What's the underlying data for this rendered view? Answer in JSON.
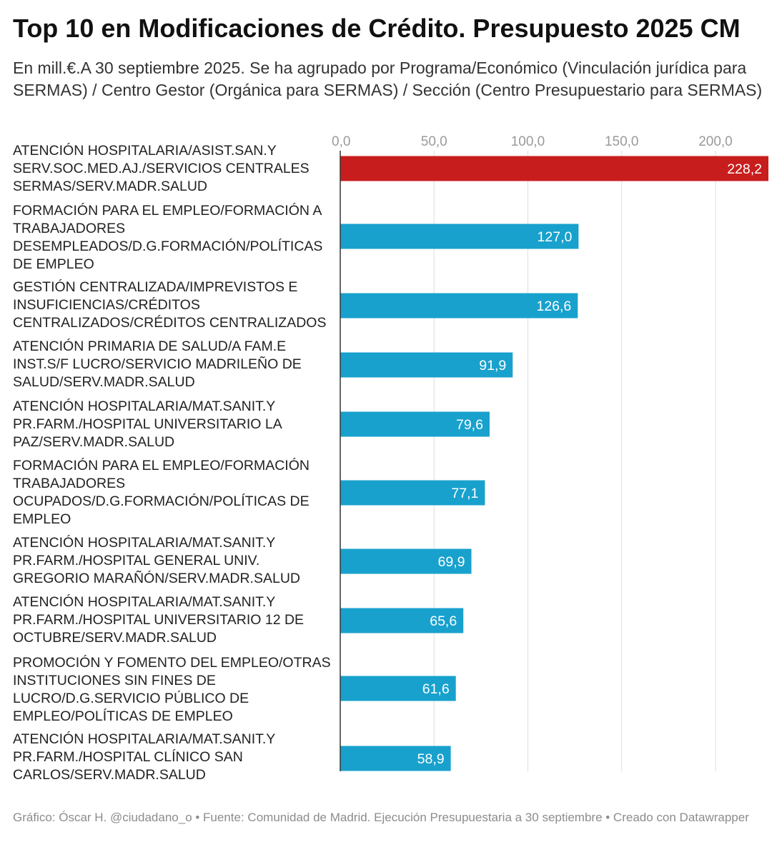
{
  "chart_data": {
    "type": "bar",
    "orientation": "horizontal",
    "title": "Top 10 en Modificaciones de Crédito. Presupuesto 2025 CM",
    "subtitle": "En mill.€.A 30 septiembre 2025. Se ha agrupado por Programa/Económico (Vinculación jurídica para SERMAS) / Centro Gestor (Orgánica para SERMAS) / Sección (Centro Presupuestario para SERMAS)",
    "xlabel": "",
    "ylabel": "",
    "xlim": [
      0,
      228.2
    ],
    "ticks": [
      0,
      50,
      100,
      150,
      200
    ],
    "tick_labels": [
      "0,0",
      "50,0",
      "100,0",
      "150,0",
      "200,0"
    ],
    "categories": [
      "ATENCIÓN HOSPITALARIA/ASIST.SAN.Y SERV.SOC.MED.AJ./SERVICIOS CENTRALES SERMAS/SERV.MADR.SALUD",
      "FORMACIÓN PARA EL EMPLEO/FORMACIÓN A TRABAJADORES DESEMPLEADOS/D.G.FORMACIÓN/POLÍTICAS DE EMPLEO",
      "GESTIÓN CENTRALIZADA/IMPREVISTOS E INSUFICIENCIAS/CRÉDITOS CENTRALIZADOS/CRÉDITOS CENTRALIZADOS",
      "ATENCIÓN PRIMARIA DE SALUD/A FAM.E INST.S/F LUCRO/SERVICIO MADRILEÑO DE SALUD/SERV.MADR.SALUD",
      "ATENCIÓN HOSPITALARIA/MAT.SANIT.Y PR.FARM./HOSPITAL UNIVERSITARIO LA PAZ/SERV.MADR.SALUD",
      "FORMACIÓN PARA EL EMPLEO/FORMACIÓN TRABAJADORES OCUPADOS/D.G.FORMACIÓN/POLÍTICAS DE EMPLEO",
      "ATENCIÓN HOSPITALARIA/MAT.SANIT.Y PR.FARM./HOSPITAL GENERAL UNIV. GREGORIO MARAÑÓN/SERV.MADR.SALUD",
      "ATENCIÓN HOSPITALARIA/MAT.SANIT.Y PR.FARM./HOSPITAL UNIVERSITARIO 12 DE OCTUBRE/SERV.MADR.SALUD",
      "PROMOCIÓN Y FOMENTO DEL EMPLEO/OTRAS INSTITUCIONES SIN FINES DE LUCRO/D.G.SERVICIO PÚBLICO DE EMPLEO/POLÍTICAS DE EMPLEO",
      "ATENCIÓN HOSPITALARIA/MAT.SANIT.Y PR.FARM./HOSPITAL CLÍNICO SAN CARLOS/SERV.MADR.SALUD"
    ],
    "values": [
      228.2,
      127.0,
      126.6,
      91.9,
      79.6,
      77.1,
      69.9,
      65.6,
      61.6,
      58.9
    ],
    "value_labels": [
      "228,2",
      "127,0",
      "126,6",
      "91,9",
      "79,6",
      "77,1",
      "69,9",
      "65,6",
      "61,6",
      "58,9"
    ],
    "highlight_index": 0,
    "colors": {
      "highlight": "#c71e1d",
      "default": "#18a1cd",
      "grid": "#dedede",
      "axis": "#333333"
    }
  },
  "footer": "Gráfico: Óscar H. @ciudadano_o • Fuente: Comunidad de Madrid. Ejecución Presupuestaria a 30 septiembre • Creado con Datawrapper"
}
